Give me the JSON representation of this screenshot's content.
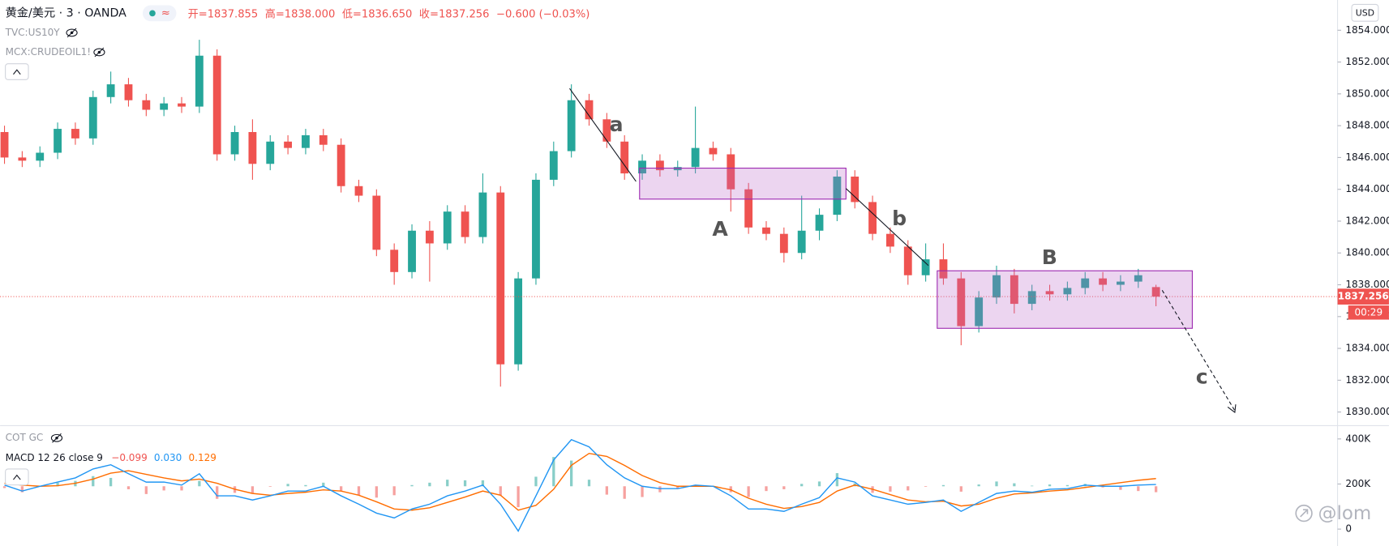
{
  "chart_data": [
    {
      "type": "candlestick",
      "title": "黄金/美元 · 3 · OANDA",
      "status_icon": "≈",
      "ohlc_labels": [
        "开=1837.855",
        "高=1838.000",
        "低=1836.650",
        "收=1837.256"
      ],
      "change_label": "−0.600 (−0.03%)",
      "overlays": [
        "TVC:US10Y",
        "MCX:CRUDEOIL1!"
      ],
      "currency": "USD",
      "price_label": "1837.256",
      "countdown": "00:29",
      "annotations": [
        "a",
        "A",
        "b",
        "B",
        "c"
      ],
      "watermark": "@lom",
      "up_color": "#26a69a",
      "down_color": "#ef5350",
      "open": [
        1847.6,
        1846.0,
        1845.8,
        1846.3,
        1847.8,
        1847.2,
        1849.8,
        1850.6,
        1849.6,
        1849.0,
        1849.4,
        1849.2,
        1852.4,
        1846.2,
        1847.6,
        1845.6,
        1847.0,
        1846.6,
        1847.4,
        1846.8,
        1844.2,
        1843.6,
        1840.2,
        1838.8,
        1841.4,
        1840.6,
        1842.6,
        1841.0,
        1843.8,
        1833.0,
        1838.4,
        1844.6,
        1846.4,
        1849.6,
        1848.4,
        1847.0,
        1845.0,
        1845.8,
        1845.2,
        1845.4,
        1846.6,
        1846.2,
        1844.0,
        1841.6,
        1841.2,
        1840.0,
        1841.4,
        1842.4,
        1844.8,
        1843.2,
        1841.2,
        1840.4,
        1838.6,
        1839.6,
        1838.4,
        1835.4,
        1837.2,
        1838.6,
        1836.8,
        1837.6,
        1837.4,
        1837.8,
        1838.4,
        1838.0,
        1838.2,
        1837.855
      ],
      "high": [
        1848.0,
        1846.4,
        1846.7,
        1848.2,
        1848.2,
        1850.2,
        1851.4,
        1851.0,
        1850.0,
        1849.8,
        1849.8,
        1853.4,
        1852.8,
        1848.0,
        1848.4,
        1847.4,
        1847.4,
        1847.8,
        1847.8,
        1847.2,
        1844.6,
        1844.0,
        1840.6,
        1841.8,
        1842.0,
        1843.0,
        1843.0,
        1845.0,
        1844.2,
        1838.8,
        1845.0,
        1847.0,
        1850.6,
        1850.0,
        1848.8,
        1847.4,
        1846.2,
        1846.2,
        1845.8,
        1849.2,
        1847.0,
        1846.6,
        1844.4,
        1842.0,
        1841.6,
        1843.6,
        1842.8,
        1845.2,
        1845.2,
        1843.6,
        1841.6,
        1840.8,
        1840.6,
        1840.6,
        1838.8,
        1837.6,
        1839.2,
        1839.0,
        1838.0,
        1838.0,
        1838.2,
        1838.8,
        1838.8,
        1838.6,
        1839.0,
        1838.0
      ],
      "low": [
        1845.6,
        1845.4,
        1845.4,
        1845.9,
        1846.8,
        1846.8,
        1849.4,
        1849.2,
        1848.6,
        1848.6,
        1848.8,
        1848.8,
        1845.8,
        1845.8,
        1844.6,
        1845.2,
        1846.2,
        1846.2,
        1846.4,
        1843.8,
        1843.2,
        1839.8,
        1838.0,
        1838.4,
        1838.2,
        1840.2,
        1840.6,
        1840.6,
        1831.6,
        1832.6,
        1838.0,
        1844.2,
        1846.0,
        1848.0,
        1846.6,
        1844.6,
        1844.6,
        1844.8,
        1844.8,
        1845.0,
        1845.8,
        1842.6,
        1841.2,
        1840.8,
        1839.4,
        1839.6,
        1840.8,
        1842.0,
        1842.8,
        1840.8,
        1840.0,
        1838.0,
        1838.2,
        1838.0,
        1834.2,
        1835.0,
        1836.8,
        1836.2,
        1836.4,
        1837.0,
        1837.0,
        1837.4,
        1837.6,
        1837.6,
        1837.8,
        1836.65
      ],
      "close": [
        1846.0,
        1845.8,
        1846.3,
        1847.8,
        1847.2,
        1849.8,
        1850.6,
        1849.6,
        1849.0,
        1849.4,
        1849.2,
        1852.4,
        1846.2,
        1847.6,
        1845.6,
        1847.0,
        1846.6,
        1847.4,
        1846.8,
        1844.2,
        1843.6,
        1840.2,
        1838.8,
        1841.4,
        1840.6,
        1842.6,
        1841.0,
        1843.8,
        1833.0,
        1838.4,
        1844.6,
        1846.4,
        1849.6,
        1848.4,
        1847.0,
        1845.0,
        1845.8,
        1845.2,
        1845.4,
        1846.6,
        1846.2,
        1844.0,
        1841.6,
        1841.2,
        1840.0,
        1841.4,
        1842.4,
        1844.8,
        1843.2,
        1841.2,
        1840.4,
        1838.6,
        1839.6,
        1838.4,
        1835.4,
        1837.2,
        1838.6,
        1836.8,
        1837.6,
        1837.4,
        1837.8,
        1838.4,
        1838.0,
        1838.2,
        1838.6,
        1837.256
      ],
      "last_price": 1837.256,
      "ylim": [
        1829.2,
        1855.9
      ],
      "yticks": [
        {
          "value": 1830,
          "label": "1830.000"
        },
        {
          "value": 1832,
          "label": "1832.000"
        },
        {
          "value": 1834,
          "label": "1834.000"
        },
        {
          "value": 1836,
          "label": "1836.000"
        },
        {
          "value": 1838,
          "label": "1838.000"
        },
        {
          "value": 1840,
          "label": "1840.000"
        },
        {
          "value": 1842,
          "label": "1842.000"
        },
        {
          "value": 1844,
          "label": "1844.000"
        },
        {
          "value": 1846,
          "label": "1846.000"
        },
        {
          "value": 1848,
          "label": "1848.000"
        },
        {
          "value": 1850,
          "label": "1850.000"
        },
        {
          "value": 1852,
          "label": "1852.000"
        },
        {
          "value": 1854,
          "label": "1854.000"
        }
      ],
      "grid": false
    },
    {
      "type": "macd",
      "title": "COT GC",
      "label": "MACD 12 26 close 9",
      "ylim": [
        -75000,
        455000
      ],
      "yticks": [
        0,
        {
          "value": 200000,
          "label": "200K"
        },
        {
          "value": 400000,
          "label": "400K"
        }
      ],
      "y2lim": [
        -1.0,
        1.0
      ],
      "histogram": {
        "axis": "y2",
        "color": "#ef5350",
        "up_color": "#26a69a",
        "last_label": "−0.099",
        "values": [
          -0.03,
          -0.1,
          0,
          0.06,
          0.09,
          0.17,
          0.14,
          -0.05,
          -0.13,
          -0.07,
          -0.07,
          0.09,
          -0.21,
          -0.11,
          -0.11,
          -0.01,
          0.04,
          0.02,
          0.06,
          -0.08,
          -0.15,
          -0.19,
          -0.15,
          0.02,
          0.06,
          0.11,
          0.1,
          0.1,
          -0.15,
          -0.35,
          0.16,
          0.49,
          0.43,
          0.11,
          -0.14,
          -0.21,
          -0.18,
          -0.1,
          -0.04,
          0.02,
          0,
          -0.1,
          -0.18,
          -0.08,
          -0.05,
          0.04,
          0.08,
          0.22,
          0.05,
          -0.11,
          -0.09,
          -0.07,
          -0.01,
          0.02,
          -0.09,
          0.03,
          0.08,
          0.05,
          0.01,
          0.03,
          0.02,
          0.04,
          -0.02,
          -0.06,
          -0.08,
          -0.099
        ]
      },
      "macd": {
        "axis": "y2",
        "color": "#2196f3",
        "last_label": "0.030",
        "values": [
          0.02,
          -0.08,
          0,
          0.07,
          0.14,
          0.29,
          0.36,
          0.21,
          0.07,
          0.07,
          0.02,
          0.21,
          -0.16,
          -0.16,
          -0.23,
          -0.16,
          -0.08,
          -0.08,
          0,
          -0.16,
          -0.3,
          -0.45,
          -0.53,
          -0.38,
          -0.3,
          -0.16,
          -0.08,
          0.02,
          -0.3,
          -0.75,
          -0.16,
          0.44,
          0.78,
          0.66,
          0.36,
          0.14,
          0,
          -0.04,
          -0.04,
          0.02,
          0,
          -0.16,
          -0.38,
          -0.38,
          -0.42,
          -0.3,
          -0.19,
          0.14,
          0.07,
          -0.16,
          -0.23,
          -0.3,
          -0.27,
          -0.23,
          -0.42,
          -0.27,
          -0.12,
          -0.08,
          -0.1,
          -0.05,
          -0.04,
          0.02,
          0,
          0,
          0.02,
          0.03
        ]
      },
      "signal": {
        "axis": "y2",
        "color": "#ff6d00",
        "last_label": "0.129",
        "values": [
          0.05,
          0.02,
          0,
          0.01,
          0.05,
          0.12,
          0.22,
          0.26,
          0.2,
          0.14,
          0.09,
          0.12,
          0.05,
          -0.05,
          -0.12,
          -0.15,
          -0.12,
          -0.1,
          -0.06,
          -0.08,
          -0.15,
          -0.26,
          -0.38,
          -0.4,
          -0.36,
          -0.27,
          -0.18,
          -0.08,
          -0.15,
          -0.4,
          -0.32,
          -0.05,
          0.35,
          0.55,
          0.5,
          0.35,
          0.18,
          0.06,
          0,
          0,
          0,
          -0.06,
          -0.2,
          -0.3,
          -0.37,
          -0.34,
          -0.27,
          -0.08,
          0.02,
          -0.05,
          -0.14,
          -0.23,
          -0.26,
          -0.25,
          -0.33,
          -0.3,
          -0.2,
          -0.13,
          -0.11,
          -0.08,
          -0.06,
          -0.02,
          0.02,
          0.06,
          0.1,
          0.129
        ]
      }
    }
  ]
}
